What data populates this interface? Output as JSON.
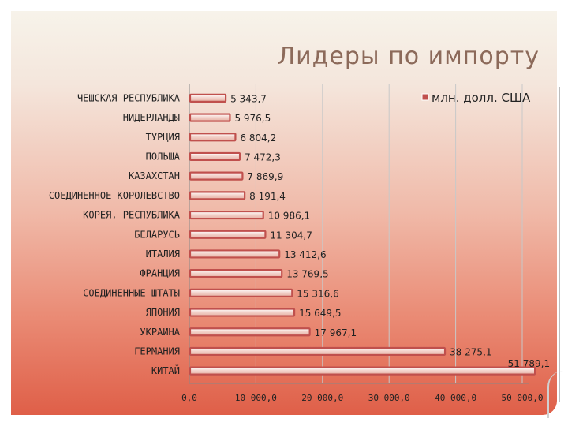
{
  "slide": {
    "title": "Лидеры по импорту"
  },
  "chart_data": {
    "type": "bar",
    "orientation": "horizontal",
    "title": "Лидеры по импорту",
    "categories": [
      "ЧЕШСКАЯ РЕСПУБЛИКА",
      "НИДЕРЛАНДЫ",
      "ТУРЦИЯ",
      "ПОЛЬША",
      "КАЗАХСТАН",
      "СОЕДИНЕННОЕ КОРОЛЕВСТВО",
      "КОРЕЯ, РЕСПУБЛИКА",
      "БЕЛАРУСЬ",
      "ИТАЛИЯ",
      "ФРАНЦИЯ",
      "СОЕДИНЕННЫЕ ШТАТЫ",
      "ЯПОНИЯ",
      "УКРАИНА",
      "ГЕРМАНИЯ",
      "КИТАЙ"
    ],
    "series": [
      {
        "name": "млн. долл. США",
        "values": [
          5343.7,
          5976.5,
          6804.2,
          7472.3,
          7869.9,
          8191.4,
          10986.1,
          11304.7,
          13412.6,
          13769.5,
          15316.6,
          15649.5,
          17967.1,
          38275.1,
          51789.1
        ]
      }
    ],
    "value_labels": [
      "5 343,7",
      "5 976,5",
      "6 804,2",
      "7 472,3",
      "7 869,9",
      "8 191,4",
      "10 986,1",
      "11 304,7",
      "13 412,6",
      "13 769,5",
      "15 316,6",
      "15 649,5",
      "17 967,1",
      "38 275,1",
      "51 789,1"
    ],
    "xlim": [
      0,
      50000
    ],
    "x_ticks": [
      0,
      10000,
      20000,
      30000,
      40000,
      50000
    ],
    "x_tick_labels": [
      "0,0",
      "10 000,0",
      "20 000,0",
      "30 000,0",
      "40 000,0",
      "50 000,0"
    ],
    "grid": true,
    "legend": "top-right",
    "bar_color": "#c0504d",
    "bar_highlight": "#f7d9d3"
  }
}
